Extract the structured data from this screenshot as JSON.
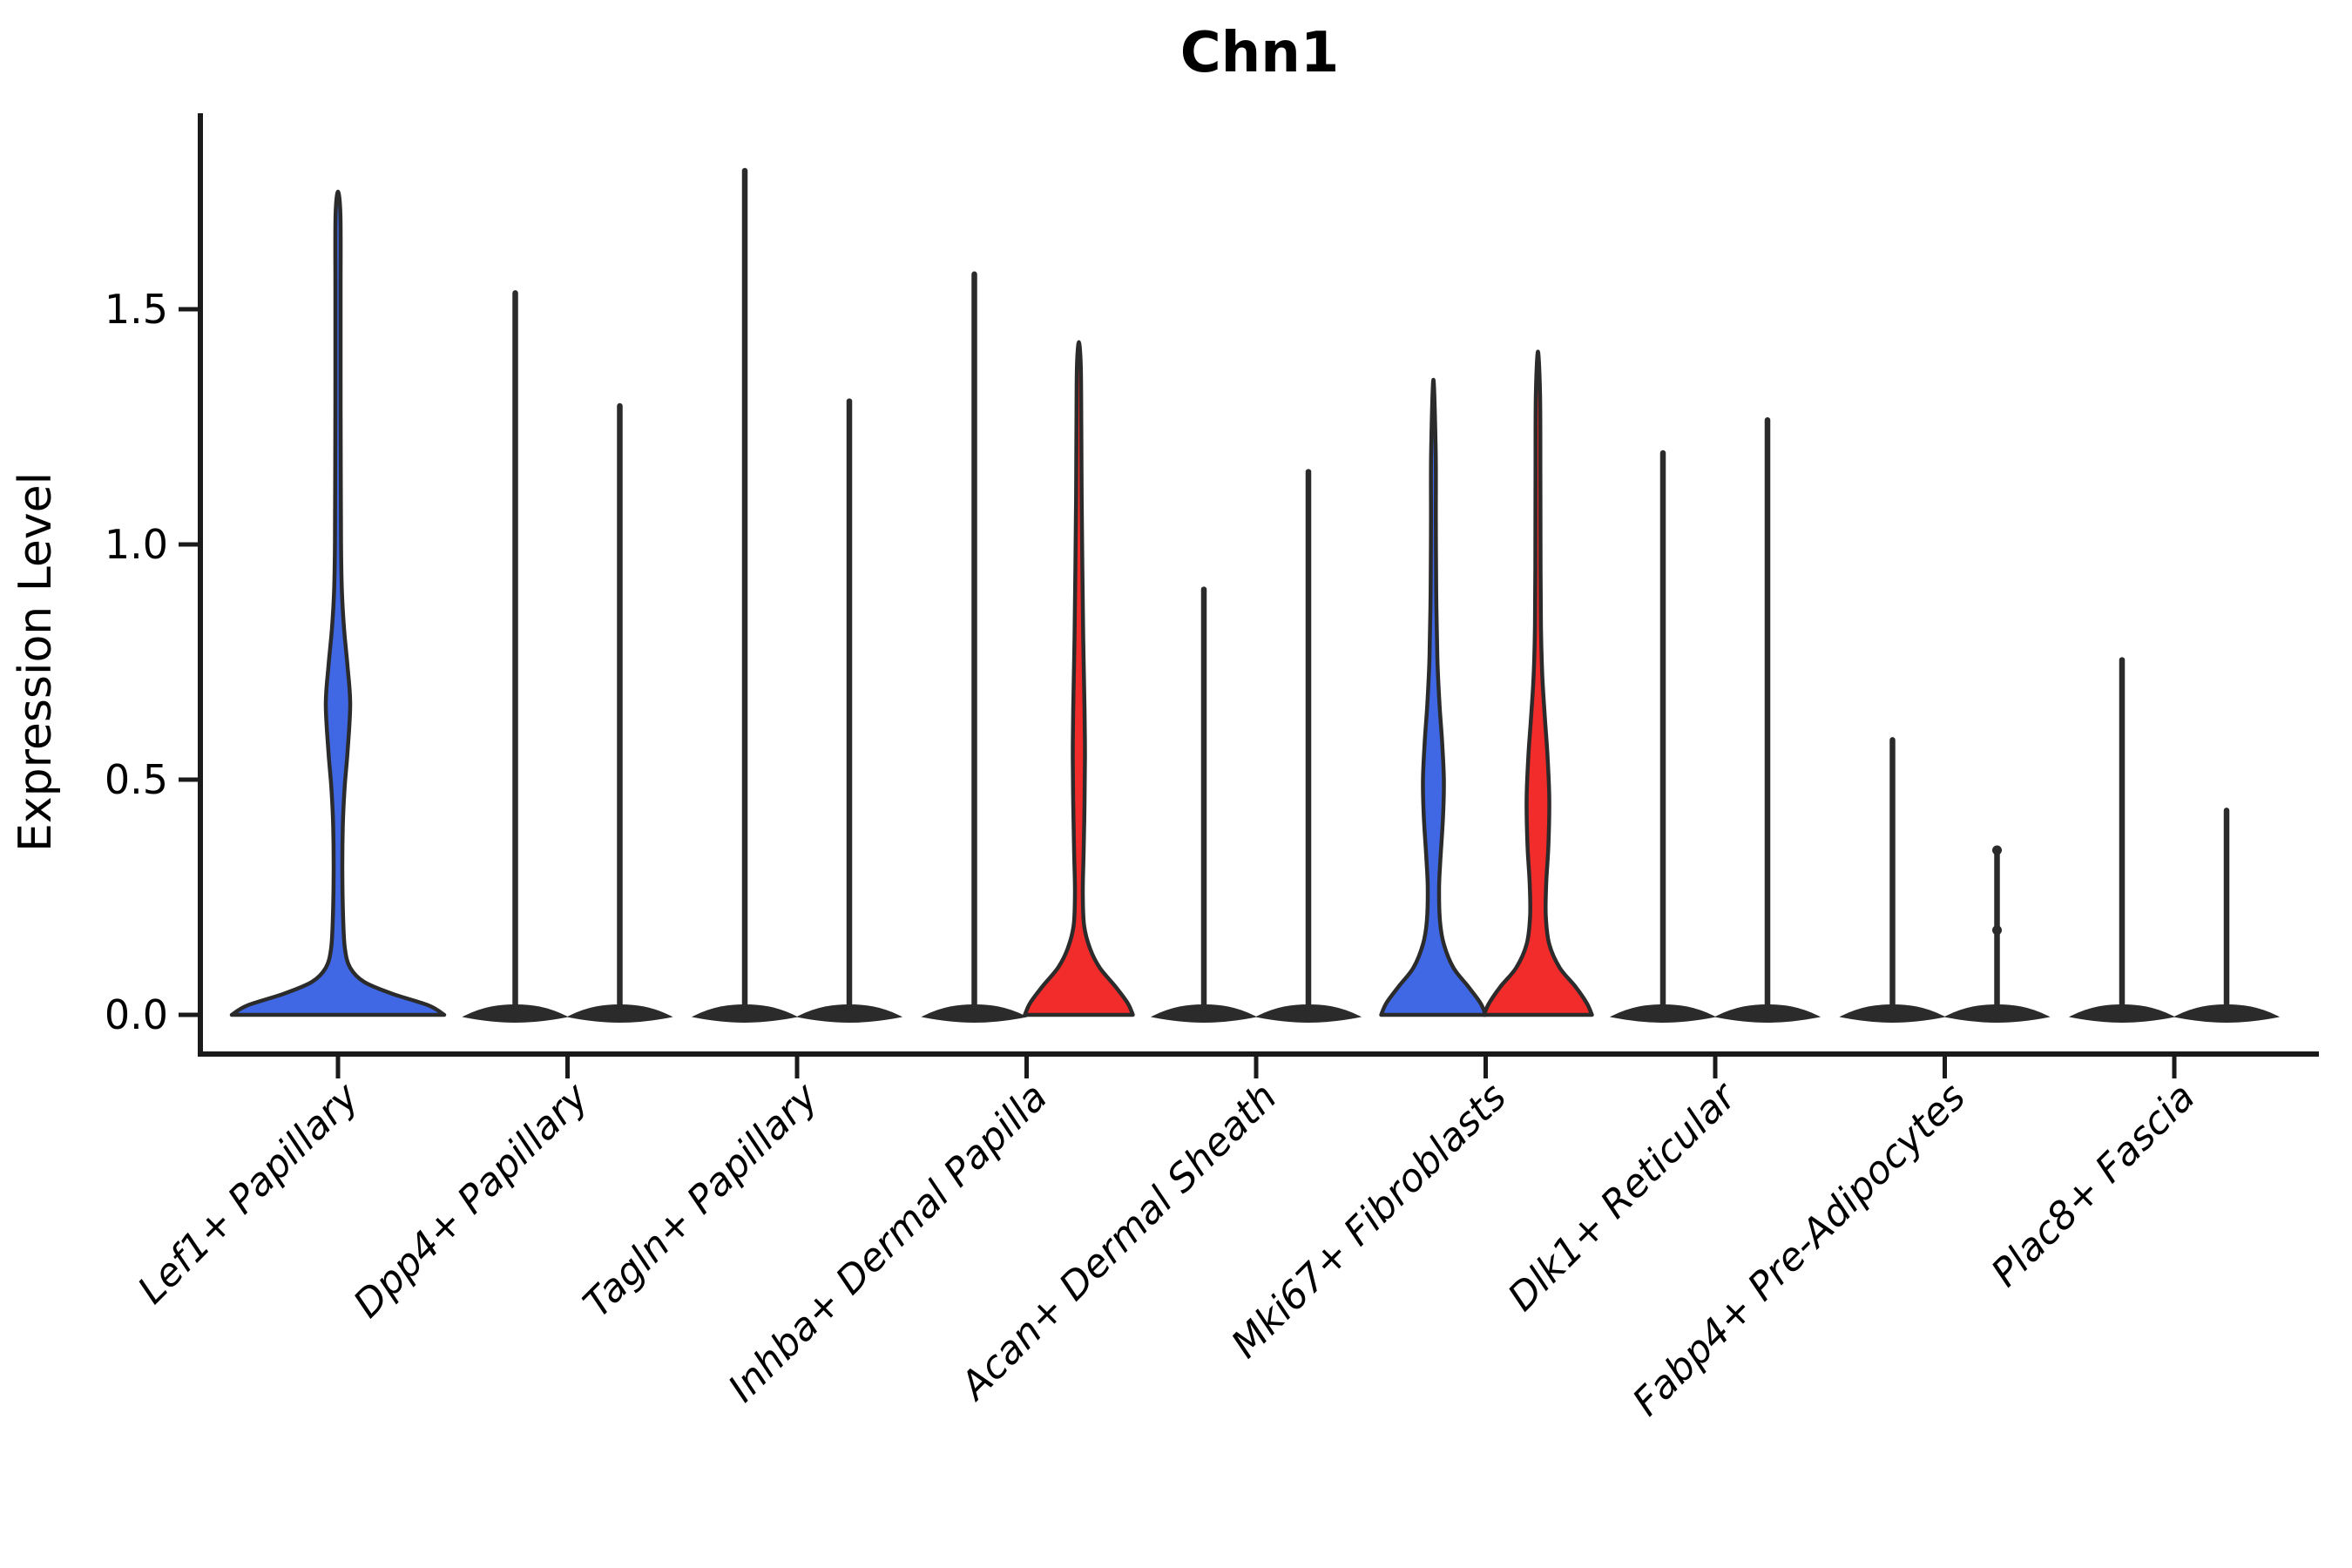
{
  "figure": {
    "title": "Chn1"
  },
  "y_axis": {
    "label": "Expression Level",
    "tick_labels": [
      "0.0",
      "0.5",
      "1.0",
      "1.5"
    ]
  },
  "chart_data": {
    "type": "violin",
    "title": "Chn1",
    "xlabel": "",
    "ylabel": "Expression Level",
    "ylim": [
      -0.08,
      1.92
    ],
    "yticks": [
      0,
      0.5,
      1,
      1.5
    ],
    "ytick_labels": [
      "0.0",
      "0.5",
      "1.0",
      "1.5"
    ],
    "grid": false,
    "legend_position": "none",
    "x_tick_rotation_deg": 45,
    "violins_per_category": 2,
    "colors": {
      "group1_blue": "#4068E4",
      "group2_red": "#F22B2B",
      "dark": "#2B2B2B",
      "outline": "#2B2B2B",
      "axis": "#1A1A1A",
      "text": "#000000"
    },
    "categories": [
      "Lef1+ Papillary",
      "Dpp4+ Papillary",
      "Tagln+ Papillary",
      "Inhba+ Dermal Papilla",
      "Acan+ Dermal Sheath",
      "Mki67+ Fibroblasts",
      "Dlk1+ Reticular",
      "Fabp4+ Pre-Adipocytes",
      "Plac8+ Fascia"
    ],
    "violins": [
      {
        "category_index": 0,
        "category": "Lef1+ Papillary",
        "group": 1,
        "slot": "center",
        "color_key": "group1_blue",
        "max_expression": 1.75,
        "bulge_peak": 0.66,
        "bulge_range": [
          0.46,
          0.93
        ],
        "profile": [
          [
            0,
            122
          ],
          [
            0.02,
            104
          ],
          [
            0.045,
            62
          ],
          [
            0.07,
            30
          ],
          [
            0.1,
            14
          ],
          [
            0.14,
            8
          ],
          [
            0.2,
            6
          ],
          [
            0.3,
            5
          ],
          [
            0.4,
            5.5
          ],
          [
            0.48,
            7.5
          ],
          [
            0.56,
            11
          ],
          [
            0.66,
            14
          ],
          [
            0.74,
            11
          ],
          [
            0.82,
            7
          ],
          [
            0.9,
            4.5
          ],
          [
            1.0,
            3.5
          ],
          [
            1.15,
            3.2
          ],
          [
            1.35,
            3
          ],
          [
            1.55,
            3
          ],
          [
            1.7,
            2.8
          ],
          [
            1.75,
            0
          ]
        ]
      },
      {
        "category_index": 1,
        "category": "Dpp4+ Papillary",
        "group": 1,
        "slot": "left",
        "color_key": "dark",
        "max_expression": 1.54
      },
      {
        "category_index": 1,
        "category": "Dpp4+ Papillary",
        "group": 2,
        "slot": "right",
        "color_key": "dark",
        "max_expression": 1.3
      },
      {
        "category_index": 2,
        "category": "Tagln+ Papillary",
        "group": 1,
        "slot": "left",
        "color_key": "dark",
        "max_expression": 1.8
      },
      {
        "category_index": 2,
        "category": "Tagln+ Papillary",
        "group": 2,
        "slot": "right",
        "color_key": "dark",
        "max_expression": 1.31
      },
      {
        "category_index": 3,
        "category": "Inhba+ Dermal Papilla",
        "group": 1,
        "slot": "left",
        "color_key": "dark",
        "max_expression": 1.58
      },
      {
        "category_index": 3,
        "category": "Inhba+ Dermal Papilla",
        "group": 2,
        "slot": "right",
        "color_key": "group2_red",
        "max_expression": 1.43,
        "bulge_peak": 0.55,
        "bulge_range": [
          0.3,
          1.0
        ],
        "profile": [
          [
            0,
            62
          ],
          [
            0.025,
            56
          ],
          [
            0.06,
            42
          ],
          [
            0.1,
            24
          ],
          [
            0.14,
            13
          ],
          [
            0.19,
            6
          ],
          [
            0.26,
            4.5
          ],
          [
            0.35,
            5.5
          ],
          [
            0.45,
            6.5
          ],
          [
            0.55,
            7
          ],
          [
            0.65,
            6.5
          ],
          [
            0.8,
            5
          ],
          [
            0.95,
            4
          ],
          [
            1.1,
            3.2
          ],
          [
            1.25,
            2.8
          ],
          [
            1.38,
            2.2
          ],
          [
            1.43,
            0
          ]
        ]
      },
      {
        "category_index": 4,
        "category": "Acan+ Dermal Sheath",
        "group": 1,
        "slot": "left",
        "color_key": "dark",
        "max_expression": 0.91
      },
      {
        "category_index": 4,
        "category": "Acan+ Dermal Sheath",
        "group": 2,
        "slot": "right",
        "color_key": "dark",
        "max_expression": 1.16
      },
      {
        "category_index": 5,
        "category": "Mki67+ Fibroblasts",
        "group": 1,
        "slot": "left",
        "color_key": "group1_blue",
        "max_expression": 1.35,
        "bulge_peak": 0.5,
        "bulge_range": [
          0.33,
          0.68
        ],
        "profile": [
          [
            0,
            60
          ],
          [
            0.025,
            54
          ],
          [
            0.06,
            40
          ],
          [
            0.1,
            23
          ],
          [
            0.15,
            12
          ],
          [
            0.2,
            7.5
          ],
          [
            0.27,
            6.5
          ],
          [
            0.33,
            8
          ],
          [
            0.42,
            11
          ],
          [
            0.5,
            12
          ],
          [
            0.58,
            10
          ],
          [
            0.66,
            7
          ],
          [
            0.76,
            4.5
          ],
          [
            0.9,
            3.2
          ],
          [
            1.05,
            2.8
          ],
          [
            1.2,
            2.6
          ],
          [
            1.35,
            0
          ]
        ]
      },
      {
        "category_index": 5,
        "category": "Mki67+ Fibroblasts",
        "group": 2,
        "slot": "right",
        "color_key": "group2_red",
        "max_expression": 1.41,
        "bulge_peak": 0.46,
        "bulge_range": [
          0.28,
          0.65
        ],
        "profile": [
          [
            0,
            62
          ],
          [
            0.025,
            56
          ],
          [
            0.06,
            43
          ],
          [
            0.1,
            25
          ],
          [
            0.15,
            13
          ],
          [
            0.21,
            9
          ],
          [
            0.28,
            9.5
          ],
          [
            0.36,
            12
          ],
          [
            0.46,
            13
          ],
          [
            0.55,
            11
          ],
          [
            0.63,
            8
          ],
          [
            0.72,
            5
          ],
          [
            0.82,
            3.5
          ],
          [
            0.95,
            3
          ],
          [
            1.15,
            2.8
          ],
          [
            1.32,
            2.4
          ],
          [
            1.41,
            0
          ]
        ]
      },
      {
        "category_index": 6,
        "category": "Dlk1+ Reticular",
        "group": 1,
        "slot": "left",
        "color_key": "dark",
        "max_expression": 1.2
      },
      {
        "category_index": 6,
        "category": "Dlk1+ Reticular",
        "group": 2,
        "slot": "right",
        "color_key": "dark",
        "max_expression": 1.27
      },
      {
        "category_index": 7,
        "category": "Fabp4+ Pre-Adipocytes",
        "group": 1,
        "slot": "left",
        "color_key": "dark",
        "max_expression": 0.59
      },
      {
        "category_index": 7,
        "category": "Fabp4+ Pre-Adipocytes",
        "group": 2,
        "slot": "right",
        "color_key": "dark",
        "max_expression": 0.35,
        "dots": [
          0.35,
          0.18
        ]
      },
      {
        "category_index": 8,
        "category": "Plac8+ Fascia",
        "group": 1,
        "slot": "left",
        "color_key": "dark",
        "max_expression": 0.76
      },
      {
        "category_index": 8,
        "category": "Plac8+ Fascia",
        "group": 2,
        "slot": "right",
        "color_key": "dark",
        "max_expression": 0.44
      }
    ]
  }
}
